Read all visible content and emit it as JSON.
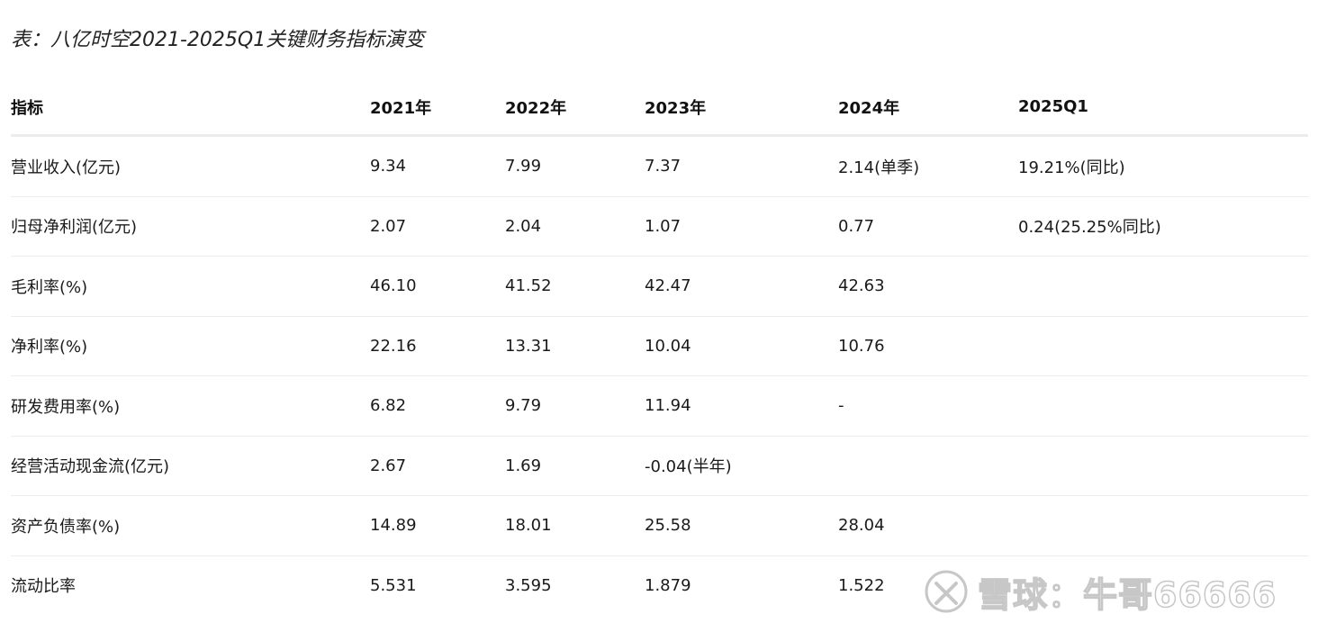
{
  "title": "表：八亿时空2021-2025Q1关键财务指标演变",
  "table": {
    "headers": [
      "指标",
      "2021年",
      "2022年",
      "2023年",
      "2024年",
      "2025Q1"
    ],
    "rows": [
      [
        "营业收入(亿元)",
        "9.34",
        "7.99",
        "7.37",
        "2.14(单季)",
        "19.21%(同比)"
      ],
      [
        "归母净利润(亿元)",
        "2.07",
        "2.04",
        "1.07",
        "0.77",
        "0.24(25.25%同比)"
      ],
      [
        "毛利率(%)",
        "46.10",
        "41.52",
        "42.47",
        "42.63",
        ""
      ],
      [
        "净利率(%)",
        "22.16",
        "13.31",
        "10.04",
        "10.76",
        ""
      ],
      [
        "研发费用率(%)",
        "6.82",
        "9.79",
        "11.94",
        "-",
        ""
      ],
      [
        "经营活动现金流(亿元)",
        "2.67",
        "1.69",
        "-0.04(半年)",
        "",
        ""
      ],
      [
        "资产负债率(%)",
        "14.89",
        "18.01",
        "25.58",
        "28.04",
        ""
      ],
      [
        "流动比率",
        "5.531",
        "3.595",
        "1.879",
        "1.522",
        ""
      ]
    ]
  },
  "watermark": {
    "text": "雪球：牛哥66666",
    "icon": "xueqiu-logo-icon"
  }
}
